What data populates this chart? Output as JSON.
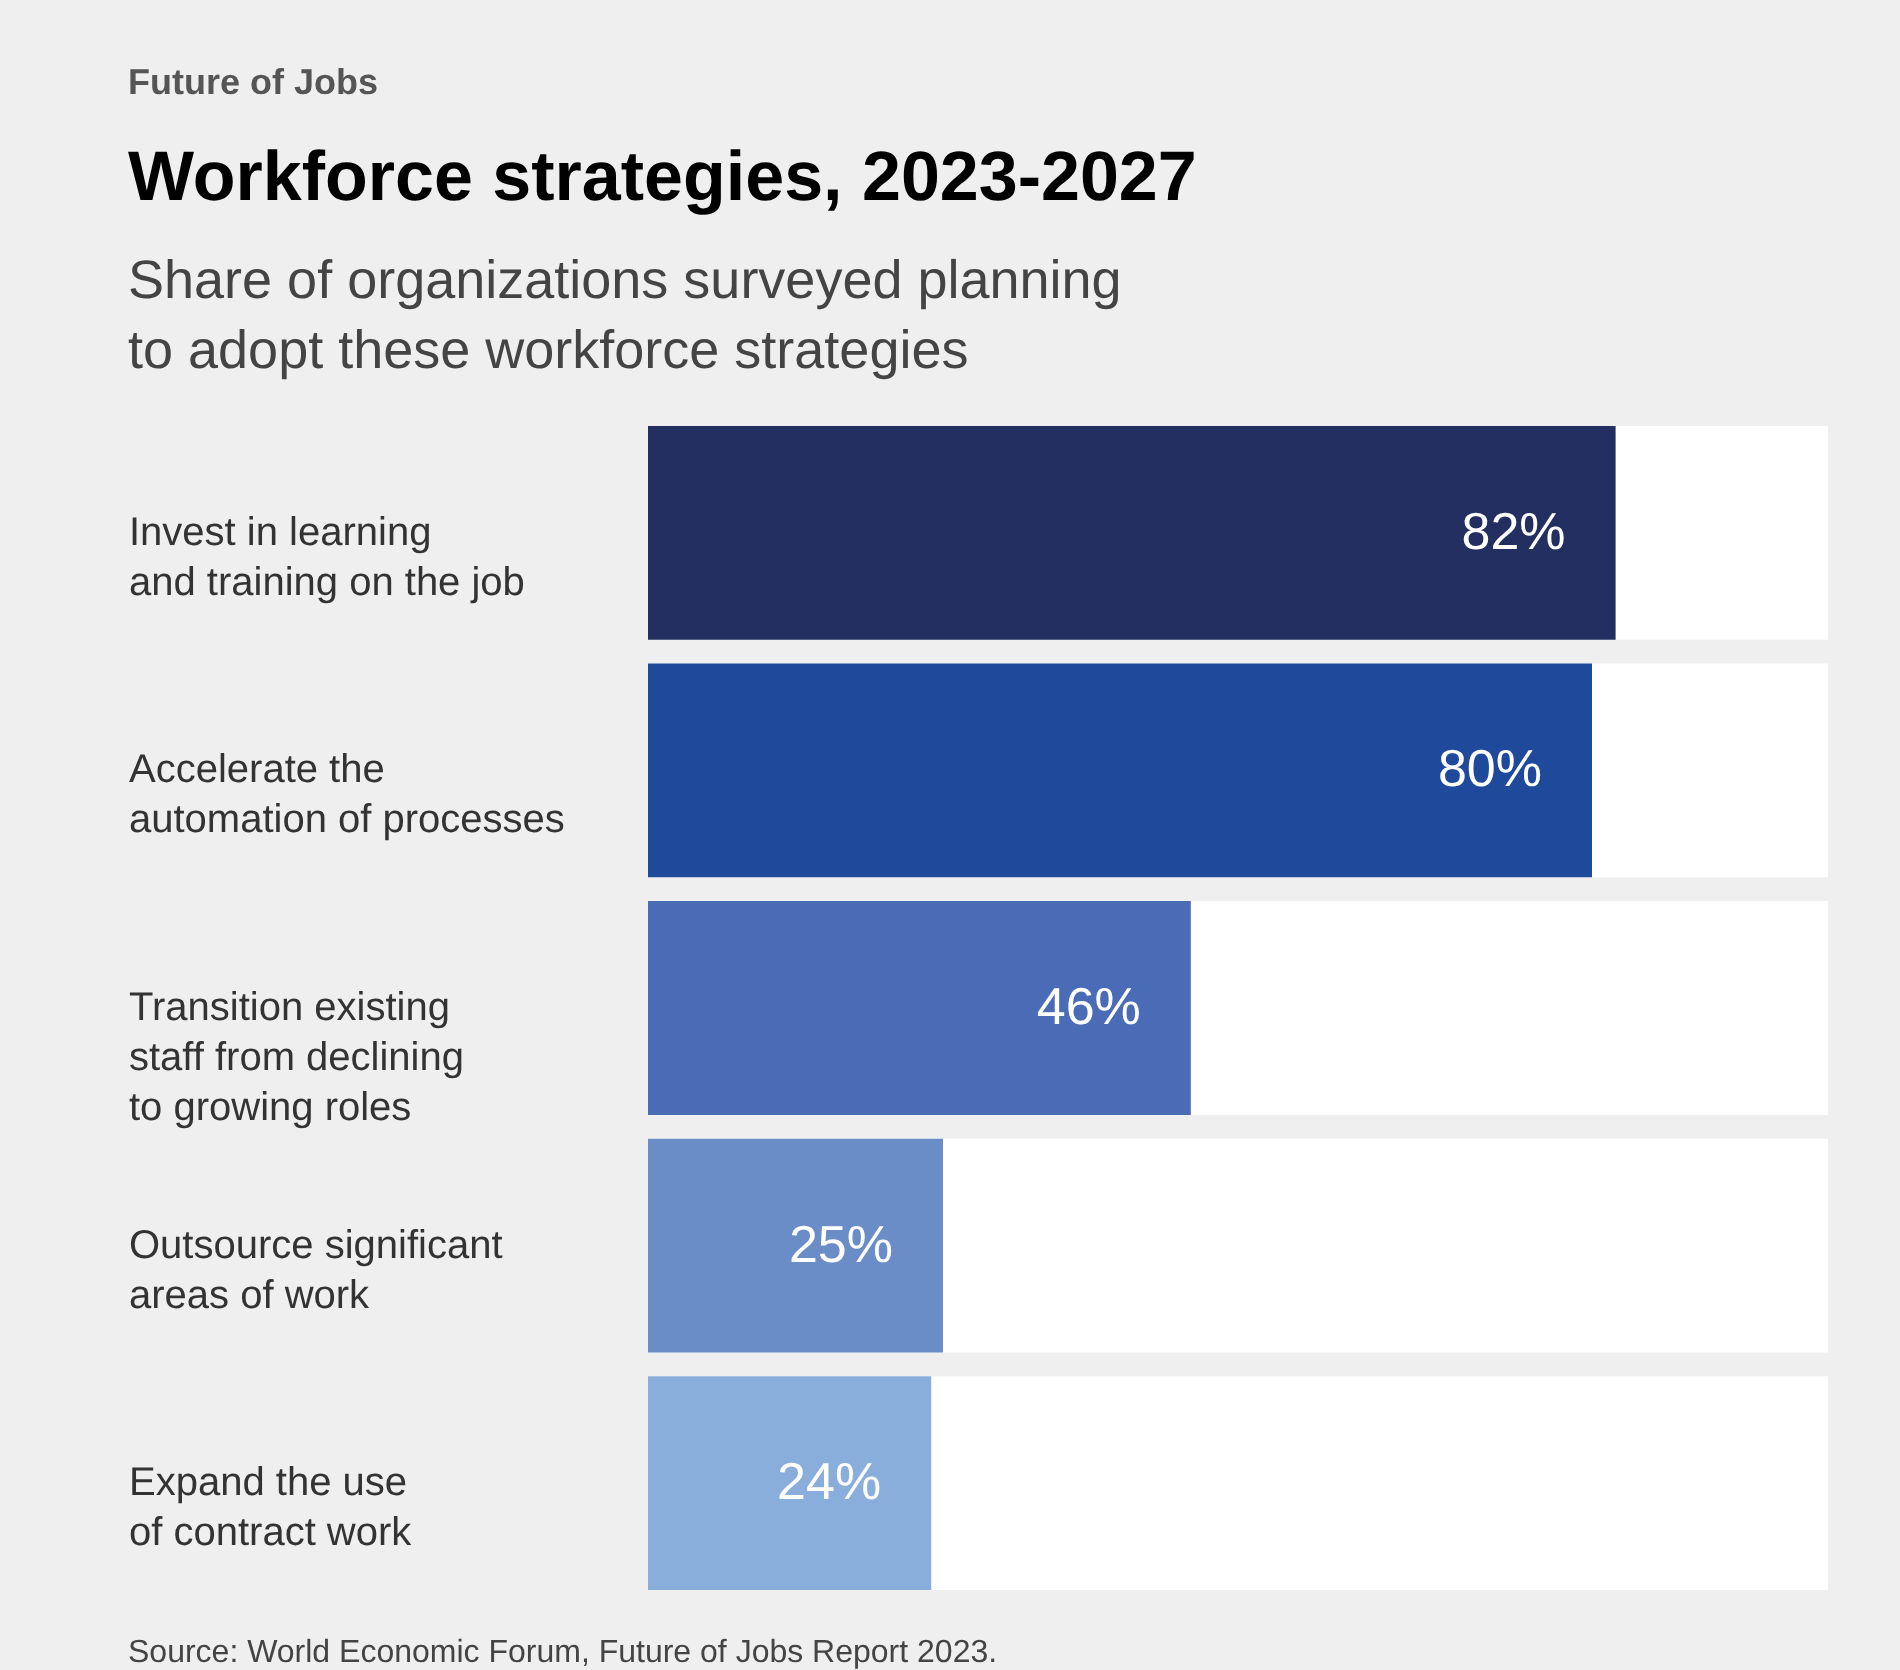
{
  "chart_data": {
    "type": "bar",
    "orientation": "horizontal",
    "title": "Workforce strategies, 2023-2027",
    "subtitle": "Share of organizations surveyed planning to adopt these workforce strategies",
    "categories": [
      "Invest in learning\nand training on the job",
      "Accelerate the\nautomation of processes",
      "Transition existing\nstaff from declining\nto growing roles",
      "Outsource significant\nareas of work",
      "Expand the use\nof contract work"
    ],
    "values": [
      82,
      80,
      46,
      25,
      24
    ],
    "colors": [
      "#222f60",
      "#1f4a9b",
      "#4a6bb5",
      "#6a8dc8",
      "#8aaedc"
    ],
    "value_labels": [
      "82%",
      "80%",
      "46%",
      "25%",
      "24%"
    ],
    "xlim": [
      0,
      100
    ],
    "tick_labels": "y",
    "grid": false,
    "legend": false,
    "annotations": [
      "Future of Jobs",
      "Source: World Economic Forum, Future of Jobs Report 2023."
    ]
  }
}
